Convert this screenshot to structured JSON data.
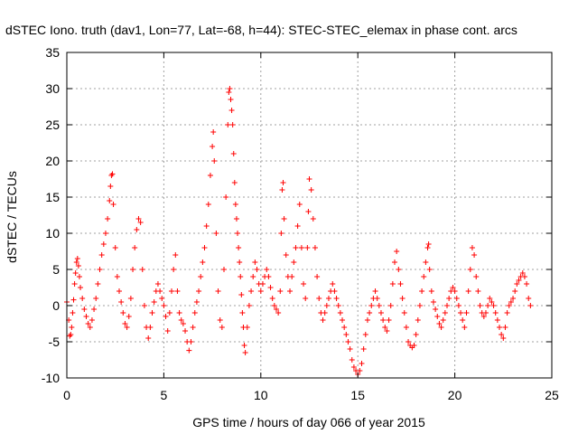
{
  "chart_data": {
    "type": "scatter",
    "title": "dSTEC Iono. truth (dav1, Lon=77, Lat=-68, h=44): STEC-STEC_elemax in phase cont. arcs",
    "xlabel": "GPS time / hours of day 066 of year 2015",
    "ylabel": "dSTEC  / TECUs",
    "xlim": [
      0,
      25
    ],
    "ylim": [
      -10,
      35
    ],
    "xticks": [
      0,
      5,
      10,
      15,
      20,
      25
    ],
    "yticks": [
      -10,
      -5,
      0,
      5,
      10,
      15,
      20,
      25,
      30,
      35
    ],
    "grid": true,
    "marker": "+",
    "color": "#ff0000",
    "series": [
      {
        "points": [
          [
            0.0,
            0.5
          ],
          [
            0.1,
            -2.0
          ],
          [
            0.15,
            -4.2
          ],
          [
            0.2,
            -4.0
          ],
          [
            0.25,
            -3.0
          ],
          [
            0.3,
            -1.0
          ],
          [
            0.35,
            0.8
          ],
          [
            0.4,
            3.0
          ],
          [
            0.45,
            4.5
          ],
          [
            0.5,
            6.0
          ],
          [
            0.55,
            6.5
          ],
          [
            0.6,
            5.5
          ],
          [
            0.65,
            4.0
          ],
          [
            0.7,
            2.5
          ],
          [
            0.8,
            1.0
          ],
          [
            0.9,
            -0.5
          ],
          [
            1.0,
            -1.5
          ],
          [
            1.1,
            -2.5
          ],
          [
            1.2,
            -3.0
          ],
          [
            1.3,
            -2.0
          ],
          [
            1.4,
            -0.5
          ],
          [
            1.5,
            1.0
          ],
          [
            1.6,
            3.0
          ],
          [
            1.7,
            5.0
          ],
          [
            1.8,
            7.0
          ],
          [
            1.9,
            8.5
          ],
          [
            2.0,
            10.0
          ],
          [
            2.1,
            12.0
          ],
          [
            2.2,
            14.5
          ],
          [
            2.25,
            16.5
          ],
          [
            2.3,
            18.0
          ],
          [
            2.35,
            18.2
          ],
          [
            2.4,
            14.0
          ],
          [
            2.5,
            8.0
          ],
          [
            2.6,
            4.0
          ],
          [
            2.7,
            2.0
          ],
          [
            2.8,
            0.5
          ],
          [
            2.9,
            -1.0
          ],
          [
            3.0,
            -2.5
          ],
          [
            3.1,
            -3.0
          ],
          [
            3.2,
            -1.5
          ],
          [
            3.3,
            1.0
          ],
          [
            3.4,
            5.0
          ],
          [
            3.5,
            8.0
          ],
          [
            3.6,
            10.5
          ],
          [
            3.7,
            12.0
          ],
          [
            3.8,
            11.5
          ],
          [
            3.9,
            5.0
          ],
          [
            4.0,
            0.0
          ],
          [
            4.1,
            -3.0
          ],
          [
            4.2,
            -4.5
          ],
          [
            4.3,
            -3.0
          ],
          [
            4.4,
            -1.0
          ],
          [
            4.5,
            0.5
          ],
          [
            4.6,
            2.0
          ],
          [
            4.7,
            3.0
          ],
          [
            4.8,
            2.0
          ],
          [
            4.9,
            1.0
          ],
          [
            5.0,
            0.0
          ],
          [
            5.1,
            -1.5
          ],
          [
            5.2,
            -3.5
          ],
          [
            5.3,
            -1.0
          ],
          [
            5.4,
            2.0
          ],
          [
            5.5,
            5.0
          ],
          [
            5.6,
            7.0
          ],
          [
            5.7,
            2.0
          ],
          [
            5.8,
            -1.0
          ],
          [
            5.9,
            -2.0
          ],
          [
            6.0,
            -2.5
          ],
          [
            6.1,
            -3.5
          ],
          [
            6.2,
            -5.0
          ],
          [
            6.3,
            -6.2
          ],
          [
            6.4,
            -5.0
          ],
          [
            6.5,
            -3.0
          ],
          [
            6.6,
            -1.0
          ],
          [
            6.7,
            0.5
          ],
          [
            6.8,
            2.0
          ],
          [
            6.9,
            4.0
          ],
          [
            7.0,
            6.0
          ],
          [
            7.1,
            8.0
          ],
          [
            7.2,
            11.0
          ],
          [
            7.3,
            14.0
          ],
          [
            7.4,
            18.0
          ],
          [
            7.5,
            22.0
          ],
          [
            7.55,
            24.0
          ],
          [
            7.6,
            20.0
          ],
          [
            7.7,
            10.0
          ],
          [
            7.8,
            2.0
          ],
          [
            7.9,
            -2.0
          ],
          [
            8.0,
            -3.0
          ],
          [
            8.1,
            5.0
          ],
          [
            8.2,
            15.0
          ],
          [
            8.3,
            25.0
          ],
          [
            8.35,
            29.5
          ],
          [
            8.4,
            30.0
          ],
          [
            8.45,
            28.5
          ],
          [
            8.5,
            27.0
          ],
          [
            8.55,
            25.0
          ],
          [
            8.6,
            21.0
          ],
          [
            8.65,
            17.0
          ],
          [
            8.7,
            14.0
          ],
          [
            8.75,
            12.0
          ],
          [
            8.8,
            10.0
          ],
          [
            8.85,
            8.0
          ],
          [
            8.9,
            6.0
          ],
          [
            8.95,
            4.0
          ],
          [
            9.0,
            1.5
          ],
          [
            9.05,
            -1.0
          ],
          [
            9.1,
            -3.0
          ],
          [
            9.15,
            -5.5
          ],
          [
            9.2,
            -6.5
          ],
          [
            9.3,
            -3.0
          ],
          [
            9.4,
            0.0
          ],
          [
            9.5,
            2.0
          ],
          [
            9.6,
            4.0
          ],
          [
            9.7,
            6.0
          ],
          [
            9.8,
            5.0
          ],
          [
            9.9,
            3.0
          ],
          [
            10.0,
            2.0
          ],
          [
            10.1,
            3.0
          ],
          [
            10.2,
            4.0
          ],
          [
            10.3,
            5.0
          ],
          [
            10.4,
            4.0
          ],
          [
            10.5,
            2.5
          ],
          [
            10.6,
            1.0
          ],
          [
            10.7,
            0.0
          ],
          [
            10.8,
            -0.5
          ],
          [
            10.9,
            -1.0
          ],
          [
            11.0,
            2.0
          ],
          [
            11.05,
            10.0
          ],
          [
            11.1,
            16.0
          ],
          [
            11.15,
            17.0
          ],
          [
            11.2,
            12.0
          ],
          [
            11.3,
            7.0
          ],
          [
            11.4,
            4.0
          ],
          [
            11.5,
            2.0
          ],
          [
            11.6,
            4.0
          ],
          [
            11.7,
            6.0
          ],
          [
            11.8,
            8.0
          ],
          [
            11.9,
            11.0
          ],
          [
            12.0,
            14.0
          ],
          [
            12.1,
            8.0
          ],
          [
            12.2,
            3.0
          ],
          [
            12.3,
            1.0
          ],
          [
            12.4,
            8.0
          ],
          [
            12.45,
            13.0
          ],
          [
            12.5,
            17.5
          ],
          [
            12.6,
            16.0
          ],
          [
            12.7,
            12.0
          ],
          [
            12.8,
            8.0
          ],
          [
            12.9,
            4.0
          ],
          [
            13.0,
            1.0
          ],
          [
            13.1,
            -1.0
          ],
          [
            13.2,
            -2.0
          ],
          [
            13.3,
            -1.0
          ],
          [
            13.4,
            0.0
          ],
          [
            13.5,
            1.0
          ],
          [
            13.6,
            2.0
          ],
          [
            13.7,
            3.0
          ],
          [
            13.8,
            2.0
          ],
          [
            13.9,
            1.0
          ],
          [
            14.0,
            0.0
          ],
          [
            14.1,
            -1.0
          ],
          [
            14.2,
            -2.0
          ],
          [
            14.3,
            -3.0
          ],
          [
            14.4,
            -4.0
          ],
          [
            14.5,
            -5.0
          ],
          [
            14.6,
            -6.0
          ],
          [
            14.7,
            -7.5
          ],
          [
            14.8,
            -8.5
          ],
          [
            14.9,
            -9.0
          ],
          [
            15.0,
            -9.5
          ],
          [
            15.1,
            -9.0
          ],
          [
            15.2,
            -8.0
          ],
          [
            15.3,
            -6.0
          ],
          [
            15.4,
            -4.0
          ],
          [
            15.5,
            -2.0
          ],
          [
            15.6,
            -1.0
          ],
          [
            15.7,
            0.0
          ],
          [
            15.8,
            1.0
          ],
          [
            15.9,
            2.0
          ],
          [
            16.0,
            1.0
          ],
          [
            16.1,
            0.0
          ],
          [
            16.2,
            -1.0
          ],
          [
            16.3,
            -2.0
          ],
          [
            16.4,
            -3.0
          ],
          [
            16.5,
            -3.5
          ],
          [
            16.6,
            -2.0
          ],
          [
            16.7,
            0.0
          ],
          [
            16.8,
            3.0
          ],
          [
            16.9,
            6.0
          ],
          [
            17.0,
            7.5
          ],
          [
            17.1,
            5.0
          ],
          [
            17.2,
            3.0
          ],
          [
            17.3,
            1.0
          ],
          [
            17.4,
            -1.0
          ],
          [
            17.5,
            -3.0
          ],
          [
            17.6,
            -5.0
          ],
          [
            17.7,
            -5.5
          ],
          [
            17.8,
            -5.8
          ],
          [
            17.9,
            -5.5
          ],
          [
            18.0,
            -4.0
          ],
          [
            18.1,
            -2.0
          ],
          [
            18.2,
            0.0
          ],
          [
            18.3,
            2.0
          ],
          [
            18.4,
            4.0
          ],
          [
            18.5,
            6.0
          ],
          [
            18.6,
            8.0
          ],
          [
            18.65,
            8.5
          ],
          [
            18.7,
            5.0
          ],
          [
            18.8,
            2.0
          ],
          [
            18.9,
            0.5
          ],
          [
            19.0,
            -0.5
          ],
          [
            19.1,
            -1.5
          ],
          [
            19.2,
            -2.5
          ],
          [
            19.3,
            -3.0
          ],
          [
            19.4,
            -2.0
          ],
          [
            19.5,
            -1.0
          ],
          [
            19.6,
            0.0
          ],
          [
            19.7,
            1.0
          ],
          [
            19.8,
            2.0
          ],
          [
            19.9,
            2.5
          ],
          [
            20.0,
            2.0
          ],
          [
            20.1,
            1.0
          ],
          [
            20.2,
            0.0
          ],
          [
            20.3,
            -1.0
          ],
          [
            20.4,
            -2.0
          ],
          [
            20.5,
            -3.0
          ],
          [
            20.6,
            -1.0
          ],
          [
            20.7,
            2.0
          ],
          [
            20.8,
            5.0
          ],
          [
            20.9,
            8.0
          ],
          [
            21.0,
            7.0
          ],
          [
            21.1,
            4.0
          ],
          [
            21.2,
            2.0
          ],
          [
            21.3,
            0.0
          ],
          [
            21.4,
            -1.0
          ],
          [
            21.5,
            -1.5
          ],
          [
            21.6,
            -1.0
          ],
          [
            21.7,
            0.0
          ],
          [
            21.8,
            1.0
          ],
          [
            21.9,
            0.5
          ],
          [
            22.0,
            0.0
          ],
          [
            22.1,
            -1.0
          ],
          [
            22.2,
            -2.0
          ],
          [
            22.3,
            -3.0
          ],
          [
            22.4,
            -4.0
          ],
          [
            22.5,
            -4.5
          ],
          [
            22.6,
            -3.0
          ],
          [
            22.7,
            -1.0
          ],
          [
            22.8,
            0.0
          ],
          [
            22.9,
            0.5
          ],
          [
            23.0,
            1.0
          ],
          [
            23.1,
            2.0
          ],
          [
            23.2,
            3.0
          ],
          [
            23.3,
            3.5
          ],
          [
            23.4,
            4.0
          ],
          [
            23.5,
            4.5
          ],
          [
            23.6,
            4.0
          ],
          [
            23.7,
            3.0
          ],
          [
            23.8,
            1.0
          ],
          [
            23.9,
            0.0
          ]
        ]
      }
    ]
  }
}
